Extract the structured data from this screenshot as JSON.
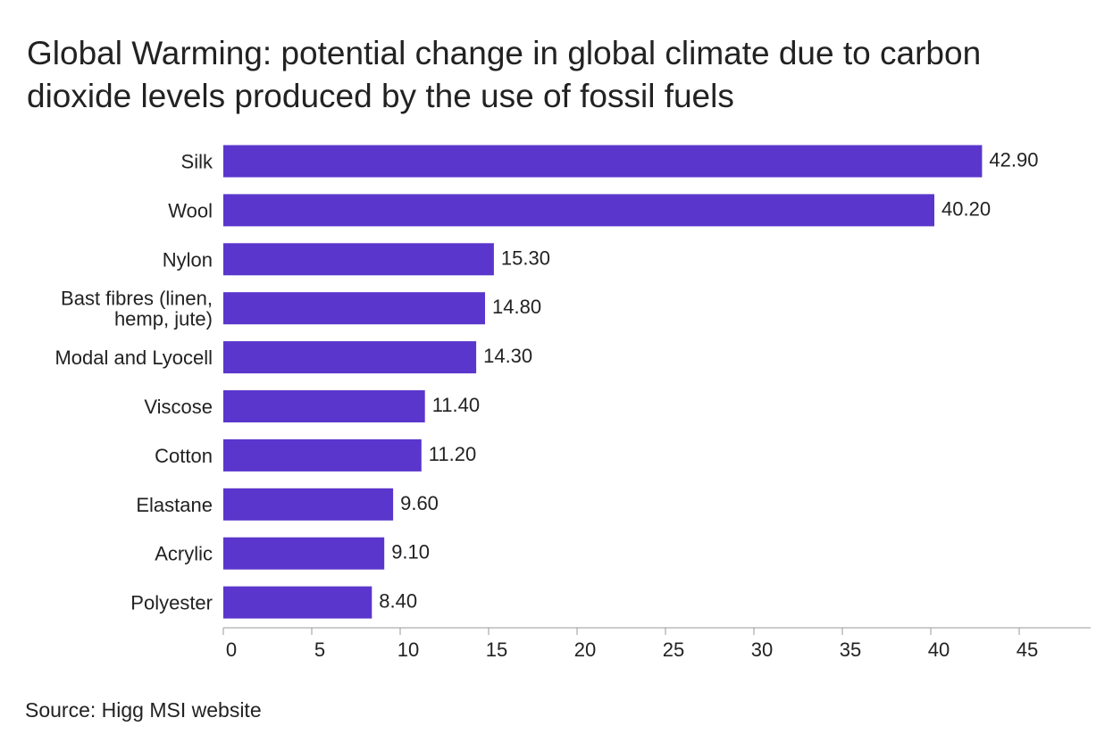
{
  "title_lines": [
    "Global Warming: potential change in global climate due to carbon",
    "dioxide levels produced by the use of fossil fuels"
  ],
  "source": "Source: Higg MSI website",
  "colors": {
    "bar": "#5a36cc",
    "axis": "#999999",
    "text": "#222222"
  },
  "chart_data": {
    "type": "bar",
    "orientation": "horizontal",
    "title": "Global Warming: potential change in global climate due to carbon dioxide levels produced by the use of fossil fuels",
    "categories": [
      [
        "Silk"
      ],
      [
        "Wool"
      ],
      [
        "Nylon"
      ],
      [
        "Bast fibres (linen,",
        "hemp, jute)"
      ],
      [
        "Modal and Lyocell"
      ],
      [
        "Viscose"
      ],
      [
        "Cotton"
      ],
      [
        "Elastane"
      ],
      [
        "Acrylic"
      ],
      [
        "Polyester"
      ]
    ],
    "values": [
      42.9,
      40.2,
      15.3,
      14.8,
      14.3,
      11.4,
      11.2,
      9.6,
      9.1,
      8.4
    ],
    "value_labels": [
      "42.90",
      "40.20",
      "15.30",
      "14.80",
      "14.30",
      "11.40",
      "11.20",
      "9.60",
      "9.10",
      "8.40"
    ],
    "xticks": [
      "0",
      "5",
      "10",
      "15",
      "20",
      "25",
      "30",
      "35",
      "40",
      "45"
    ],
    "xlim": [
      0,
      49
    ],
    "xlabel": "",
    "ylabel": "",
    "grid": false,
    "legend": "none"
  }
}
